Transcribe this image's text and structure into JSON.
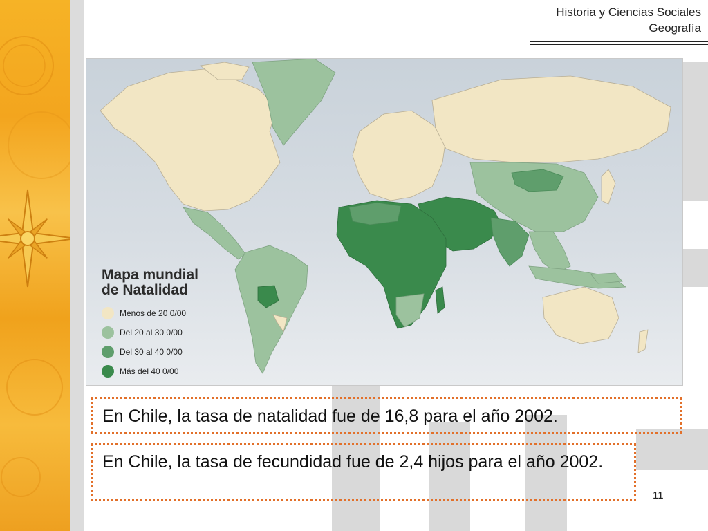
{
  "header": {
    "subject": "Historia y Ciencias Sociales",
    "topic": "Geografía"
  },
  "map": {
    "title_line1": "Mapa mundial",
    "title_line2": "de Natalidad",
    "legend": [
      {
        "label": "Menos de 20 ",
        "unit": "0/00",
        "color": "#f2e6c4"
      },
      {
        "label": "Del 20 al 30 ",
        "unit": "0/00",
        "color": "#9cc29e"
      },
      {
        "label": "Del 30 al 40 ",
        "unit": "0/00",
        "color": "#5f9e6c"
      },
      {
        "label": "Más del 40 ",
        "unit": "0/00",
        "color": "#3a8a4c"
      }
    ],
    "colors": {
      "ocean": "#cdd5dc",
      "low": "#f2e6c4",
      "mid_low": "#9cc29e",
      "mid_high": "#5f9e6c",
      "high": "#3a8a4c"
    }
  },
  "statements": {
    "natalidad": "En Chile, la tasa de natalidad fue de 16,8 para el año 2002.",
    "fecundidad": "En Chile, la tasa de fecundidad fue de 2,4 hijos para el año 2002."
  },
  "page_number": "11",
  "accent_color": "#e2702a"
}
